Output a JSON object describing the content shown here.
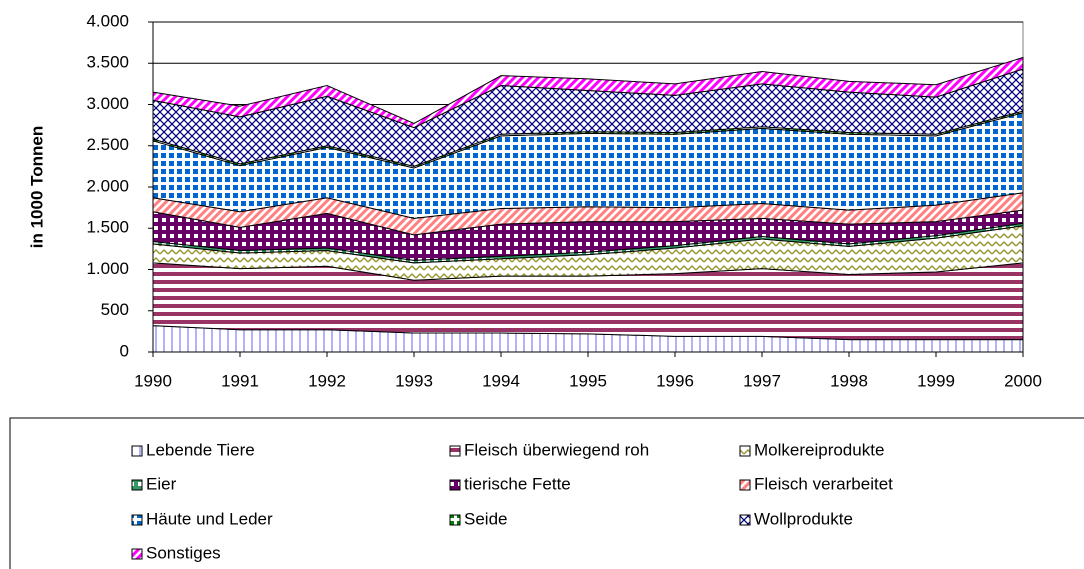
{
  "chart_data": {
    "type": "stacked_area",
    "ylabel": "in 1000 Tonnen",
    "categories": [
      "1990",
      "1991",
      "1992",
      "1993",
      "1994",
      "1995",
      "1996",
      "1997",
      "1998",
      "1999",
      "2000"
    ],
    "ylim": [
      0,
      4000
    ],
    "yticks": [
      0,
      500,
      {
        "value": 1000,
        "label": "1.000"
      },
      {
        "value": 1500,
        "label": "1.500"
      },
      {
        "value": 2000,
        "label": "2.000"
      },
      {
        "value": 2500,
        "label": "2.500"
      },
      {
        "value": 3000,
        "label": "3.000"
      },
      {
        "value": 3500,
        "label": "3.500"
      },
      {
        "value": 4000,
        "label": "4.000"
      }
    ],
    "grid": true,
    "series": [
      {
        "name": "Lebende Tiere",
        "color": "#9999ff",
        "pattern": "vertical",
        "values": [
          320,
          270,
          270,
          230,
          230,
          220,
          190,
          190,
          150,
          150,
          150
        ]
      },
      {
        "name": "Fleisch überwiegend roh",
        "color": "#993366",
        "pattern": "horizontal",
        "values": [
          760,
          740,
          770,
          640,
          690,
          700,
          760,
          820,
          790,
          820,
          930
        ]
      },
      {
        "name": "Molkereiprodukte",
        "color": "#999933",
        "pattern": "zigzag",
        "values": [
          230,
          190,
          190,
          210,
          210,
          260,
          310,
          360,
          340,
          410,
          450
        ]
      },
      {
        "name": "Eier",
        "color": "#339966",
        "pattern": "grid",
        "values": [
          30,
          30,
          30,
          30,
          30,
          30,
          30,
          30,
          30,
          30,
          30
        ]
      },
      {
        "name": "tierische Fette",
        "color": "#660066",
        "pattern": "grid",
        "values": [
          360,
          280,
          420,
          310,
          390,
          370,
          290,
          220,
          240,
          170,
          160
        ]
      },
      {
        "name": "Fleisch verarbeitet",
        "color": "#ff8080",
        "pattern": "diagonal",
        "values": [
          170,
          190,
          190,
          200,
          190,
          180,
          170,
          180,
          170,
          200,
          210
        ]
      },
      {
        "name": "Häute und Leder",
        "color": "#0066cc",
        "pattern": "dots",
        "values": [
          690,
          560,
          610,
          610,
          880,
          890,
          890,
          910,
          920,
          840,
          970
        ]
      },
      {
        "name": "Seide",
        "color": "#008000",
        "pattern": "dots",
        "values": [
          20,
          20,
          20,
          20,
          20,
          20,
          20,
          20,
          20,
          20,
          20
        ]
      },
      {
        "name": "Wollprodukte",
        "color": "#000080",
        "pattern": "cross",
        "values": [
          470,
          570,
          600,
          470,
          590,
          500,
          450,
          520,
          490,
          450,
          510
        ]
      },
      {
        "name": "Sonstiges",
        "color": "#ff00ff",
        "pattern": "diagonal",
        "values": [
          100,
          130,
          130,
          50,
          120,
          140,
          140,
          150,
          130,
          150,
          140
        ]
      }
    ]
  }
}
